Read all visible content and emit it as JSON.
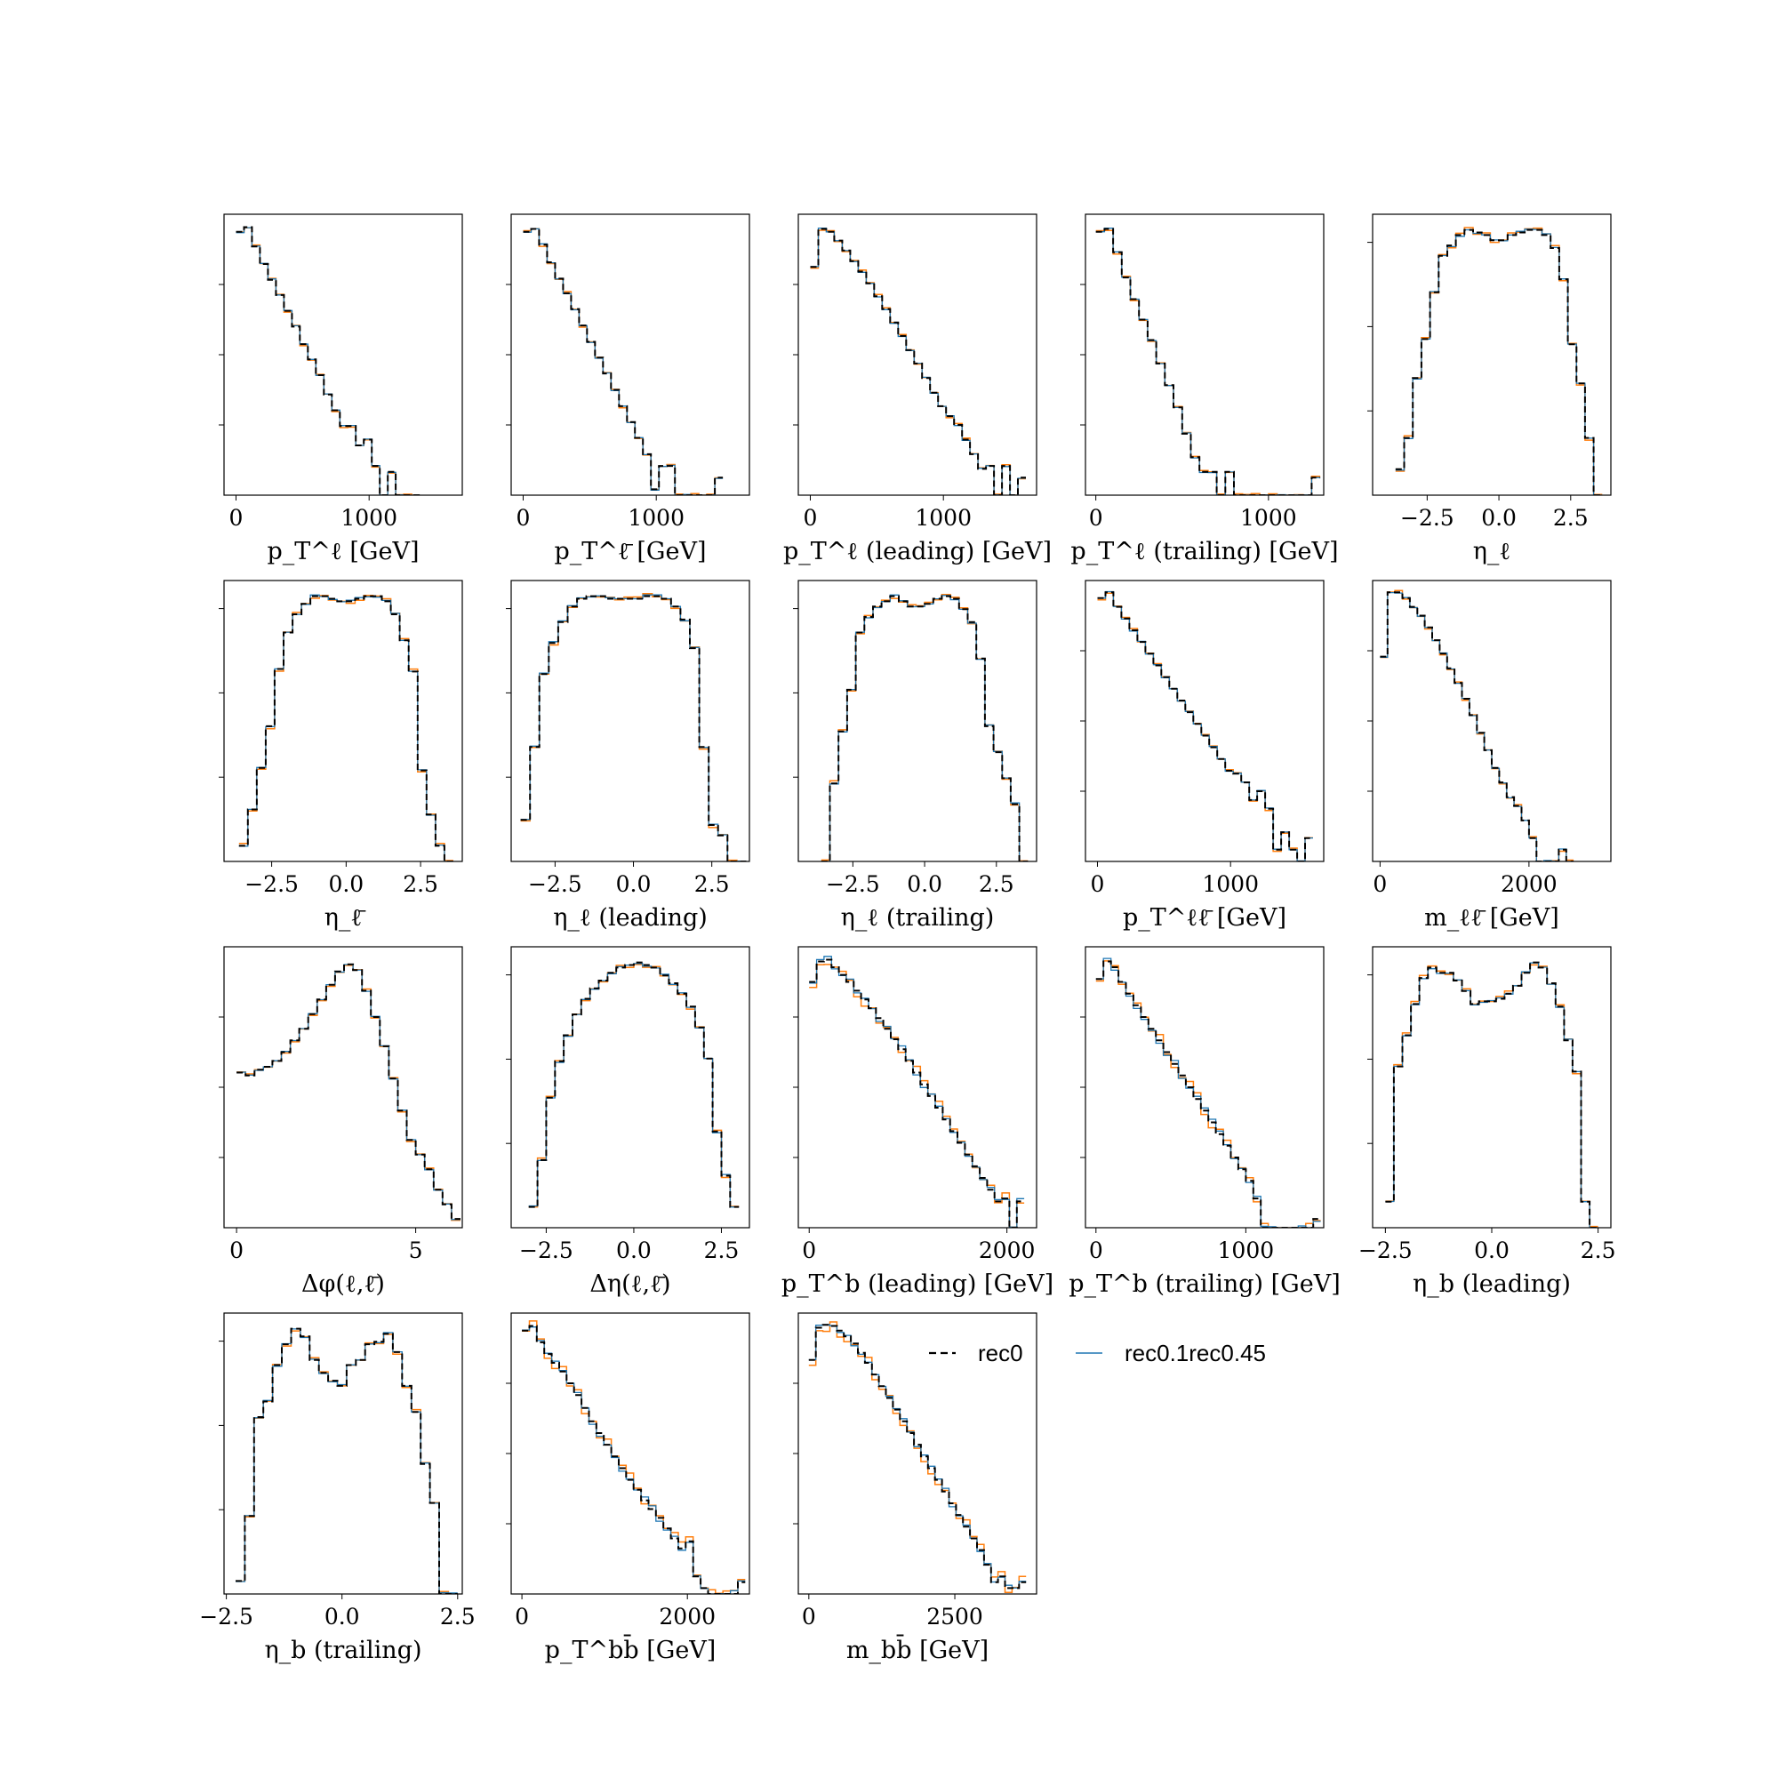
{
  "legend": {
    "entries": [
      {
        "label": "rec0",
        "color": "#000000",
        "dash": true
      },
      {
        "label": "rec0.1rec0.45",
        "color": "#1f77b4",
        "dash": false
      }
    ]
  },
  "colors": {
    "ref": "#000000",
    "blue": "#1f77b4",
    "orange": "#ff7f0e"
  },
  "chart_data": [
    {
      "type": "step",
      "xlabel": "p_T^ℓ [GeV]",
      "xlim": [
        -90,
        1700
      ],
      "ticks": [
        0,
        1000
      ],
      "tick_labels": [
        "0",
        "1000"
      ],
      "log": true,
      "ylim": [
        -4.5,
        0.3
      ],
      "x": [
        0,
        60,
        120,
        180,
        240,
        300,
        360,
        420,
        480,
        540,
        600,
        660,
        720,
        780,
        840,
        900,
        960,
        1020,
        1080,
        1140,
        1200,
        1260,
        1320
      ],
      "values": [
        0,
        0.08,
        -0.25,
        -0.55,
        -0.82,
        -1.08,
        -1.35,
        -1.62,
        -1.92,
        -2.18,
        -2.45,
        -2.78,
        -3.05,
        -3.32,
        -3.32,
        -3.65,
        -3.55,
        -4.0,
        -4.5,
        -4.1,
        -4.5,
        -4.5,
        -4.5
      ]
    },
    {
      "type": "step",
      "xlabel": "p_T^ℓ̄ [GeV]",
      "xlim": [
        -90,
        1700
      ],
      "ticks": [
        0,
        1000
      ],
      "tick_labels": [
        "0",
        "1000"
      ],
      "log": true,
      "ylim": [
        -4.5,
        0.3
      ],
      "x": [
        0,
        60,
        120,
        180,
        240,
        300,
        360,
        420,
        480,
        540,
        600,
        660,
        720,
        780,
        840,
        900,
        960,
        1020,
        1080,
        1140,
        1200,
        1260,
        1320,
        1380,
        1440
      ],
      "values": [
        0,
        0.05,
        -0.22,
        -0.52,
        -0.8,
        -1.05,
        -1.32,
        -1.6,
        -1.88,
        -2.15,
        -2.42,
        -2.7,
        -2.98,
        -3.25,
        -3.52,
        -3.8,
        -4.4,
        -4.0,
        -4.0,
        -4.5,
        -4.5,
        -4.5,
        -4.5,
        -4.5,
        -4.2
      ]
    },
    {
      "type": "step",
      "xlabel": "p_T^ℓ (leading) [GeV]",
      "xlim": [
        -90,
        1700
      ],
      "ticks": [
        0,
        1000
      ],
      "tick_labels": [
        "0",
        "1000"
      ],
      "log": true,
      "ylim": [
        -4.5,
        0.3
      ],
      "x": [
        0,
        60,
        120,
        180,
        240,
        300,
        360,
        420,
        480,
        540,
        600,
        660,
        720,
        780,
        840,
        900,
        960,
        1020,
        1080,
        1140,
        1200,
        1260,
        1320,
        1380,
        1440,
        1500,
        1560
      ],
      "values": [
        -0.6,
        0.05,
        0.0,
        -0.15,
        -0.32,
        -0.5,
        -0.68,
        -0.88,
        -1.1,
        -1.32,
        -1.55,
        -1.78,
        -2.02,
        -2.25,
        -2.5,
        -2.75,
        -2.98,
        -3.15,
        -3.3,
        -3.55,
        -3.8,
        -4.05,
        -4.0,
        -4.5,
        -4.0,
        -4.5,
        -4.2
      ]
    },
    {
      "type": "step",
      "xlabel": "p_T^ℓ (trailing) [GeV]",
      "xlim": [
        -60,
        1320
      ],
      "ticks": [
        0,
        1000
      ],
      "tick_labels": [
        "0",
        "1000"
      ],
      "log": true,
      "ylim": [
        -4.5,
        0.3
      ],
      "x": [
        0,
        50,
        100,
        150,
        200,
        250,
        300,
        350,
        400,
        450,
        500,
        550,
        600,
        650,
        700,
        750,
        800,
        850,
        900,
        950,
        1000,
        1050,
        1100,
        1150,
        1200,
        1250
      ],
      "values": [
        0,
        0.05,
        -0.35,
        -0.78,
        -1.15,
        -1.5,
        -1.85,
        -2.25,
        -2.62,
        -3.0,
        -3.45,
        -3.85,
        -4.1,
        -4.1,
        -4.5,
        -4.1,
        -4.5,
        -4.5,
        -4.5,
        -4.5,
        -4.5,
        -4.5,
        -4.5,
        -4.5,
        -4.5,
        -4.2
      ]
    },
    {
      "type": "step",
      "xlabel": "η_ℓ",
      "xlim": [
        -4.4,
        3.9
      ],
      "ticks": [
        -2.5,
        0.0,
        2.5
      ],
      "tick_labels": [
        "−2.5",
        "0.0",
        "2.5"
      ],
      "log": false,
      "ylim": [
        0,
        1.08
      ],
      "x": [
        -3.6,
        -3.3,
        -3.0,
        -2.7,
        -2.4,
        -2.1,
        -1.8,
        -1.5,
        -1.2,
        -0.9,
        -0.6,
        -0.3,
        0.0,
        0.3,
        0.6,
        0.9,
        1.2,
        1.5,
        1.8,
        2.1,
        2.4,
        2.7,
        3.0,
        3.3
      ],
      "values": [
        0.1,
        0.22,
        0.45,
        0.6,
        0.78,
        0.92,
        0.96,
        1.0,
        1.02,
        1.01,
        1.0,
        0.98,
        0.98,
        1.0,
        1.01,
        1.02,
        1.02,
        1.0,
        0.95,
        0.83,
        0.58,
        0.43,
        0.22,
        0.0
      ]
    },
    {
      "type": "step",
      "xlabel": "η_ℓ̄",
      "xlim": [
        -4.1,
        3.9
      ],
      "ticks": [
        -2.5,
        0.0,
        2.5
      ],
      "tick_labels": [
        "−2.5",
        "0.0",
        "2.5"
      ],
      "log": false,
      "ylim": [
        0,
        1.08
      ],
      "x": [
        -3.6,
        -3.3,
        -3.0,
        -2.7,
        -2.4,
        -2.1,
        -1.8,
        -1.5,
        -1.2,
        -0.9,
        -0.6,
        -0.3,
        0.0,
        0.3,
        0.6,
        0.9,
        1.2,
        1.5,
        1.8,
        2.1,
        2.4,
        2.7,
        3.0,
        3.3
      ],
      "values": [
        0.06,
        0.2,
        0.36,
        0.52,
        0.74,
        0.88,
        0.95,
        0.99,
        1.02,
        1.02,
        1.01,
        1.0,
        1.0,
        1.01,
        1.02,
        1.02,
        1.0,
        0.95,
        0.85,
        0.73,
        0.35,
        0.18,
        0.06,
        0.0
      ]
    },
    {
      "type": "step",
      "xlabel": "η_ℓ (leading)",
      "xlim": [
        -3.9,
        3.7
      ],
      "ticks": [
        -2.5,
        0.0,
        2.5
      ],
      "tick_labels": [
        "−2.5",
        "0.0",
        "2.5"
      ],
      "log": false,
      "ylim": [
        0,
        1.08
      ],
      "x": [
        -3.6,
        -3.3,
        -3.0,
        -2.7,
        -2.4,
        -2.1,
        -1.8,
        -1.5,
        -1.2,
        -0.9,
        -0.6,
        -0.3,
        0.0,
        0.3,
        0.6,
        0.9,
        1.2,
        1.5,
        1.8,
        2.1,
        2.4,
        2.7,
        3.0,
        3.3
      ],
      "values": [
        0.16,
        0.44,
        0.72,
        0.84,
        0.92,
        0.98,
        1.01,
        1.02,
        1.02,
        1.01,
        1.01,
        1.01,
        1.01,
        1.02,
        1.02,
        1.01,
        0.98,
        0.93,
        0.82,
        0.44,
        0.14,
        0.1,
        0.0,
        0.0
      ]
    },
    {
      "type": "step",
      "xlabel": "η_ℓ (trailing)",
      "xlim": [
        -4.4,
        3.9
      ],
      "ticks": [
        -2.5,
        0.0,
        2.5
      ],
      "tick_labels": [
        "−2.5",
        "0.0",
        "2.5"
      ],
      "log": false,
      "ylim": [
        0,
        1.08
      ],
      "x": [
        -3.6,
        -3.3,
        -3.0,
        -2.7,
        -2.4,
        -2.1,
        -1.8,
        -1.5,
        -1.2,
        -0.9,
        -0.6,
        -0.3,
        0.0,
        0.3,
        0.6,
        0.9,
        1.2,
        1.5,
        1.8,
        2.1,
        2.4,
        2.7,
        3.0,
        3.3
      ],
      "values": [
        0.0,
        0.3,
        0.5,
        0.66,
        0.88,
        0.94,
        0.98,
        1.0,
        1.02,
        1.0,
        0.98,
        0.98,
        0.99,
        1.01,
        1.02,
        1.01,
        0.97,
        0.92,
        0.78,
        0.52,
        0.42,
        0.32,
        0.22,
        0.0
      ]
    },
    {
      "type": "step",
      "xlabel": "p_T^ℓℓ̄ [GeV]",
      "xlim": [
        -90,
        1700
      ],
      "ticks": [
        0,
        1000
      ],
      "tick_labels": [
        "0",
        "1000"
      ],
      "log": true,
      "ylim": [
        -4.5,
        0.3
      ],
      "x": [
        0,
        60,
        120,
        180,
        240,
        300,
        360,
        420,
        480,
        540,
        600,
        660,
        720,
        780,
        840,
        900,
        960,
        1020,
        1080,
        1140,
        1200,
        1260,
        1320,
        1380,
        1440,
        1500,
        1560
      ],
      "values": [
        0,
        0.1,
        -0.15,
        -0.35,
        -0.55,
        -0.75,
        -0.95,
        -1.15,
        -1.35,
        -1.55,
        -1.75,
        -1.95,
        -2.15,
        -2.35,
        -2.55,
        -2.75,
        -2.95,
        -3.0,
        -3.15,
        -3.45,
        -3.3,
        -3.6,
        -4.3,
        -4.0,
        -4.3,
        -4.5,
        -4.1
      ]
    },
    {
      "type": "step",
      "xlabel": "m_ℓℓ̄ [GeV]",
      "xlim": [
        -100,
        3100
      ],
      "ticks": [
        0,
        2000
      ],
      "tick_labels": [
        "0",
        "2000"
      ],
      "log": true,
      "ylim": [
        -4.5,
        0.3
      ],
      "x": [
        0,
        100,
        200,
        300,
        400,
        500,
        600,
        700,
        800,
        900,
        1000,
        1100,
        1200,
        1300,
        1400,
        1500,
        1600,
        1700,
        1800,
        1900,
        2000,
        2100,
        2200,
        2300,
        2400,
        2500
      ],
      "values": [
        -1.0,
        0.1,
        0.1,
        0.0,
        -0.15,
        -0.3,
        -0.5,
        -0.72,
        -0.95,
        -1.2,
        -1.45,
        -1.72,
        -2.0,
        -2.3,
        -2.6,
        -2.9,
        -3.15,
        -3.4,
        -3.55,
        -3.8,
        -4.1,
        -4.5,
        -4.5,
        -4.5,
        -4.3,
        -4.5
      ]
    },
    {
      "type": "step",
      "xlabel": "Δφ(ℓ,ℓ̄)",
      "xlim": [
        -0.35,
        6.3
      ],
      "ticks": [
        0,
        5
      ],
      "tick_labels": [
        "0",
        "5"
      ],
      "log": true,
      "ylim": [
        -4.5,
        0.3
      ],
      "x": [
        0,
        0.25,
        0.5,
        0.75,
        1.0,
        1.25,
        1.5,
        1.75,
        2.0,
        2.25,
        2.5,
        2.75,
        3.0,
        3.25,
        3.5,
        3.75,
        4.0,
        4.25,
        4.5,
        4.75,
        5.0,
        5.25,
        5.5,
        5.75,
        6.0
      ],
      "values": [
        -1.85,
        -1.9,
        -1.8,
        -1.75,
        -1.65,
        -1.5,
        -1.3,
        -1.1,
        -0.85,
        -0.6,
        -0.35,
        -0.12,
        0.0,
        -0.1,
        -0.45,
        -0.9,
        -1.4,
        -1.95,
        -2.5,
        -3.0,
        -3.25,
        -3.5,
        -3.85,
        -4.1,
        -4.35
      ]
    },
    {
      "type": "step",
      "xlabel": "Δη(ℓ,ℓ̄)",
      "xlim": [
        -3.5,
        3.3
      ],
      "ticks": [
        -2.5,
        0.0,
        2.5
      ],
      "tick_labels": [
        "−2.5",
        "0.0",
        "2.5"
      ],
      "log": false,
      "ylim": [
        0,
        1.08
      ],
      "x": [
        -3.0,
        -2.75,
        -2.5,
        -2.25,
        -2.0,
        -1.75,
        -1.5,
        -1.25,
        -1.0,
        -0.75,
        -0.5,
        -0.25,
        0.0,
        0.25,
        0.5,
        0.75,
        1.0,
        1.25,
        1.5,
        1.75,
        2.0,
        2.25,
        2.5,
        2.75
      ],
      "values": [
        0.08,
        0.26,
        0.5,
        0.64,
        0.74,
        0.82,
        0.88,
        0.92,
        0.95,
        0.98,
        1.0,
        1.01,
        1.02,
        1.01,
        1.0,
        0.97,
        0.94,
        0.9,
        0.85,
        0.77,
        0.65,
        0.37,
        0.2,
        0.08
      ]
    },
    {
      "type": "step",
      "xlabel": "p_T^b (leading) [GeV]",
      "xlim": [
        -110,
        2300
      ],
      "ticks": [
        0,
        2000
      ],
      "tick_labels": [
        "0",
        "2000"
      ],
      "log": true,
      "ylim": [
        -4.5,
        0.3
      ],
      "x": [
        0,
        75,
        150,
        225,
        300,
        375,
        450,
        525,
        600,
        675,
        750,
        825,
        900,
        975,
        1050,
        1125,
        1200,
        1275,
        1350,
        1425,
        1500,
        1575,
        1650,
        1725,
        1800,
        1875,
        1950,
        2025,
        2100
      ],
      "values": [
        -0.3,
        0.05,
        0.08,
        -0.05,
        -0.18,
        -0.3,
        -0.45,
        -0.6,
        -0.75,
        -0.92,
        -1.1,
        -1.28,
        -1.45,
        -1.65,
        -1.85,
        -2.05,
        -2.25,
        -2.45,
        -2.65,
        -2.85,
        -3.05,
        -3.25,
        -3.45,
        -3.65,
        -3.85,
        -4.05,
        -4.0,
        -4.5,
        -4.05
      ]
    },
    {
      "type": "step",
      "xlabel": "p_T^b (trailing) [GeV]",
      "xlim": [
        -70,
        1520
      ],
      "ticks": [
        0,
        1000
      ],
      "tick_labels": [
        "0",
        "1000"
      ],
      "log": true,
      "ylim": [
        -4.5,
        0.3
      ],
      "x": [
        0,
        50,
        100,
        150,
        200,
        250,
        300,
        350,
        400,
        450,
        500,
        550,
        600,
        650,
        700,
        750,
        800,
        850,
        900,
        950,
        1000,
        1050,
        1100,
        1150,
        1200,
        1250,
        1300,
        1350,
        1400,
        1450
      ],
      "values": [
        -0.25,
        0.05,
        -0.05,
        -0.3,
        -0.5,
        -0.7,
        -0.9,
        -1.1,
        -1.3,
        -1.5,
        -1.7,
        -1.9,
        -2.1,
        -2.3,
        -2.5,
        -2.7,
        -2.9,
        -3.1,
        -3.3,
        -3.5,
        -3.7,
        -4.0,
        -4.5,
        -4.5,
        -4.5,
        -4.5,
        -4.5,
        -4.5,
        -4.5,
        -4.35
      ]
    },
    {
      "type": "step",
      "xlabel": "η_b (leading)",
      "xlim": [
        -2.8,
        2.8
      ],
      "ticks": [
        -2.5,
        0.0,
        2.5
      ],
      "tick_labels": [
        "−2.5",
        "0.0",
        "2.5"
      ],
      "log": false,
      "ylim": [
        0,
        1.08
      ],
      "x": [
        -2.5,
        -2.3,
        -2.1,
        -1.9,
        -1.7,
        -1.5,
        -1.3,
        -1.1,
        -0.9,
        -0.7,
        -0.5,
        -0.3,
        -0.1,
        0.1,
        0.3,
        0.5,
        0.7,
        0.9,
        1.1,
        1.3,
        1.5,
        1.7,
        1.9,
        2.1,
        2.3
      ],
      "values": [
        0.1,
        0.62,
        0.74,
        0.86,
        0.96,
        1.0,
        0.98,
        0.98,
        0.95,
        0.91,
        0.86,
        0.87,
        0.87,
        0.88,
        0.9,
        0.93,
        0.98,
        1.02,
        1.0,
        0.94,
        0.85,
        0.72,
        0.6,
        0.1,
        0.0
      ]
    },
    {
      "type": "step",
      "xlabel": "η_b (trailing)",
      "xlim": [
        -2.55,
        2.6
      ],
      "ticks": [
        -2.5,
        0.0,
        2.5
      ],
      "tick_labels": [
        "−2.5",
        "0.0",
        "2.5"
      ],
      "log": false,
      "ylim": [
        0,
        1.08
      ],
      "x": [
        -2.3,
        -2.1,
        -1.9,
        -1.7,
        -1.5,
        -1.3,
        -1.1,
        -0.9,
        -0.7,
        -0.5,
        -0.3,
        -0.1,
        0.1,
        0.3,
        0.5,
        0.7,
        0.9,
        1.1,
        1.3,
        1.5,
        1.7,
        1.9,
        2.1,
        2.3
      ],
      "values": [
        0.05,
        0.3,
        0.68,
        0.74,
        0.88,
        0.96,
        1.02,
        0.99,
        0.9,
        0.85,
        0.82,
        0.8,
        0.88,
        0.9,
        0.96,
        0.97,
        1.0,
        0.93,
        0.8,
        0.7,
        0.5,
        0.35,
        0.0,
        0.0
      ]
    },
    {
      "type": "step",
      "xlabel": "p_T^bb̄ [GeV]",
      "xlim": [
        -130,
        2750
      ],
      "ticks": [
        0,
        2000
      ],
      "tick_labels": [
        "0",
        "2000"
      ],
      "log": true,
      "ylim": [
        -4.5,
        0.3
      ],
      "x": [
        0,
        90,
        180,
        270,
        360,
        450,
        540,
        630,
        720,
        810,
        900,
        990,
        1080,
        1170,
        1260,
        1350,
        1440,
        1530,
        1620,
        1710,
        1800,
        1890,
        1980,
        2070,
        2160,
        2250,
        2340,
        2430,
        2520,
        2610
      ],
      "values": [
        0,
        0.08,
        -0.2,
        -0.4,
        -0.55,
        -0.7,
        -0.9,
        -1.1,
        -1.32,
        -1.55,
        -1.75,
        -1.95,
        -2.15,
        -2.35,
        -2.55,
        -2.72,
        -2.9,
        -3.05,
        -3.2,
        -3.38,
        -3.55,
        -3.72,
        -3.6,
        -4.2,
        -4.4,
        -4.5,
        -4.5,
        -4.5,
        -4.5,
        -4.3
      ]
    },
    {
      "type": "step",
      "xlabel": "m_bb̄ [GeV]",
      "xlim": [
        -180,
        3900
      ],
      "ticks": [
        0,
        2500
      ],
      "tick_labels": [
        "0",
        "2500"
      ],
      "log": true,
      "ylim": [
        -4.5,
        0.3
      ],
      "x": [
        0,
        120,
        240,
        360,
        480,
        600,
        720,
        840,
        960,
        1080,
        1200,
        1320,
        1440,
        1560,
        1680,
        1800,
        1920,
        2040,
        2160,
        2280,
        2400,
        2520,
        2640,
        2760,
        2880,
        3000,
        3120,
        3240,
        3360,
        3480,
        3600
      ],
      "values": [
        -0.5,
        0.05,
        0.1,
        0.08,
        0.0,
        -0.1,
        -0.22,
        -0.38,
        -0.55,
        -0.75,
        -0.95,
        -1.15,
        -1.35,
        -1.55,
        -1.75,
        -1.95,
        -2.15,
        -2.35,
        -2.55,
        -2.75,
        -2.95,
        -3.15,
        -3.35,
        -3.55,
        -3.75,
        -4.0,
        -4.3,
        -4.2,
        -4.4,
        -4.4,
        -4.3
      ]
    }
  ]
}
